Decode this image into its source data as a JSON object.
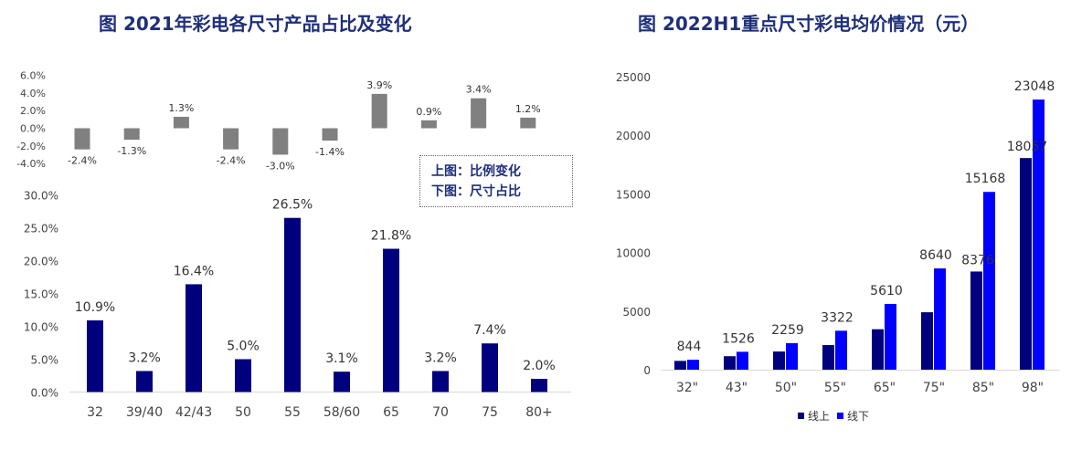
{
  "titles": {
    "left": "图  2021年彩电各尺寸产品占比及变化",
    "right": "图  2022H1重点尺寸彩电均价情况（元）"
  },
  "note": {
    "line1": "上图：比例变化",
    "line2": "下图：尺寸占比"
  },
  "legend": {
    "online": "线上",
    "offline": "线下"
  },
  "colors": {
    "navy": "#00007f",
    "blue": "#0000ff",
    "gray": "#808080",
    "title": "#1f2f7a"
  },
  "chart_data": [
    {
      "id": "share-change",
      "type": "bar",
      "categories": [
        "32",
        "39/40",
        "42/43",
        "50",
        "55",
        "58/60",
        "65",
        "70",
        "75",
        "80+"
      ],
      "values": [
        -2.4,
        -1.3,
        1.3,
        -2.4,
        -3.0,
        -1.4,
        3.9,
        0.9,
        3.4,
        1.2
      ],
      "data_labels": [
        "-2.4%",
        "-1.3%",
        "1.3%",
        "-2.4%",
        "-3.0%",
        "-1.4%",
        "3.9%",
        "0.9%",
        "3.4%",
        "1.2%"
      ],
      "yticks": [
        "6.0%",
        "4.0%",
        "2.0%",
        "0.0%",
        "-2.0%",
        "-4.0%"
      ],
      "ylim": [
        -4,
        6
      ],
      "grid": false
    },
    {
      "id": "size-share",
      "type": "bar",
      "categories": [
        "32",
        "39/40",
        "42/43",
        "50",
        "55",
        "58/60",
        "65",
        "70",
        "75",
        "80+"
      ],
      "values": [
        10.9,
        3.2,
        16.4,
        5.0,
        26.5,
        3.1,
        21.8,
        3.2,
        7.4,
        2.0
      ],
      "data_labels": [
        "10.9%",
        "3.2%",
        "16.4%",
        "5.0%",
        "26.5%",
        "3.1%",
        "21.8%",
        "3.2%",
        "7.4%",
        "2.0%"
      ],
      "yticks": [
        "30.0%",
        "25.0%",
        "20.0%",
        "15.0%",
        "10.0%",
        "5.0%",
        "0.0%"
      ],
      "ylim": [
        0,
        30
      ],
      "grid": false
    },
    {
      "id": "avg-price",
      "type": "bar",
      "categories": [
        "32\"",
        "43\"",
        "50\"",
        "55\"",
        "65\"",
        "75\"",
        "85\"",
        "98\""
      ],
      "series": [
        {
          "name": "线上",
          "values": [
            750,
            1150,
            1550,
            2100,
            3450,
            4900,
            8376,
            18057
          ],
          "labels": [
            "",
            "",
            "",
            "",
            "",
            "",
            "8376",
            "18057"
          ]
        },
        {
          "name": "线下",
          "values": [
            844,
            1526,
            2259,
            3322,
            5610,
            8640,
            15168,
            23048
          ],
          "labels": [
            "844",
            "1526",
            "2259",
            "3322",
            "5610",
            "8640",
            "15168",
            "23048"
          ]
        }
      ],
      "yticks": [
        "25000",
        "20000",
        "15000",
        "10000",
        "5000",
        "0"
      ],
      "ylim": [
        0,
        25000
      ],
      "legend_position": "bottom",
      "grid": false
    }
  ]
}
